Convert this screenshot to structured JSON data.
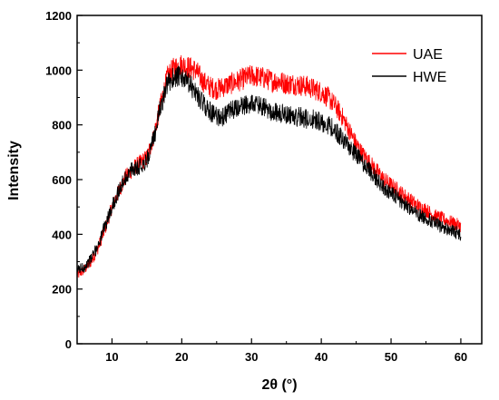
{
  "chart_data": {
    "type": "line",
    "xlabel": "2θ (°)",
    "ylabel": "Intensity",
    "xlim": [
      5,
      63
    ],
    "ylim": [
      0,
      1200
    ],
    "x_ticks": [
      10,
      20,
      30,
      40,
      50,
      60
    ],
    "y_ticks": [
      0,
      200,
      400,
      600,
      800,
      1000,
      1200
    ],
    "grid": false,
    "legend_position": "top-right",
    "series": [
      {
        "name": "UAE",
        "color": "#ff0000",
        "x": [
          5,
          6,
          7,
          8,
          9,
          10,
          11,
          12,
          13,
          14,
          15,
          16,
          17,
          18,
          19,
          20,
          21,
          22,
          23,
          24,
          25,
          26,
          27,
          28,
          29,
          30,
          31,
          32,
          33,
          34,
          35,
          36,
          37,
          38,
          39,
          40,
          41,
          42,
          43,
          44,
          45,
          46,
          47,
          48,
          49,
          50,
          51,
          52,
          53,
          54,
          55,
          56,
          57,
          58,
          59,
          60
        ],
        "y": [
          250,
          270,
          300,
          350,
          420,
          500,
          560,
          610,
          640,
          660,
          680,
          760,
          880,
          980,
          1010,
          1020,
          1010,
          1000,
          960,
          940,
          930,
          940,
          950,
          960,
          970,
          980,
          975,
          970,
          960,
          960,
          950,
          950,
          945,
          940,
          930,
          920,
          900,
          870,
          830,
          780,
          730,
          690,
          660,
          630,
          600,
          580,
          560,
          540,
          520,
          500,
          490,
          470,
          460,
          450,
          440,
          430
        ]
      },
      {
        "name": "HWE",
        "color": "#000000",
        "x": [
          5,
          6,
          7,
          8,
          9,
          10,
          11,
          12,
          13,
          14,
          15,
          16,
          17,
          18,
          19,
          20,
          21,
          22,
          23,
          24,
          25,
          26,
          27,
          28,
          29,
          30,
          31,
          32,
          33,
          34,
          35,
          36,
          37,
          38,
          39,
          40,
          41,
          42,
          43,
          44,
          45,
          46,
          47,
          48,
          49,
          50,
          51,
          52,
          53,
          54,
          55,
          56,
          57,
          58,
          59,
          60
        ],
        "y": [
          270,
          280,
          310,
          360,
          430,
          500,
          560,
          610,
          640,
          650,
          670,
          750,
          870,
          950,
          980,
          970,
          950,
          920,
          880,
          850,
          830,
          830,
          850,
          860,
          870,
          880,
          870,
          860,
          850,
          840,
          840,
          830,
          830,
          820,
          820,
          810,
          800,
          780,
          750,
          720,
          690,
          660,
          630,
          600,
          570,
          550,
          530,
          510,
          490,
          470,
          460,
          445,
          430,
          420,
          410,
          400
        ]
      }
    ]
  }
}
